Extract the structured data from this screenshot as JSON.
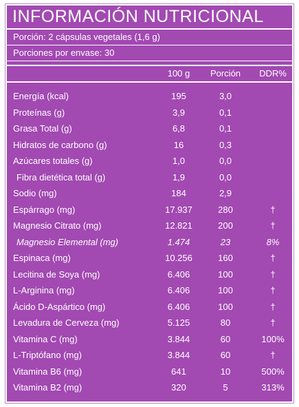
{
  "title": "INFORMACIÓN NUTRICIONAL",
  "serving_size": "Porción: 2 cápsulas vegetales (1,6 g)",
  "servings_per_container": "Porciones por envase: 30",
  "columns": [
    "100 g",
    "Porción",
    "DDR%"
  ],
  "rows": [
    {
      "name": "Energía (kcal)",
      "per100": "195",
      "serving": "3,0",
      "ddr": ""
    },
    {
      "name": "Proteínas (g)",
      "per100": "3,9",
      "serving": "0,1",
      "ddr": ""
    },
    {
      "name": "Grasa Total (g)",
      "per100": "6,8",
      "serving": "0,1",
      "ddr": ""
    },
    {
      "name": "Hidratos de carbono (g)",
      "per100": "16",
      "serving": "0,3",
      "ddr": ""
    },
    {
      "name": "Azúcares totales (g)",
      "per100": "1,0",
      "serving": "0,0",
      "ddr": ""
    },
    {
      "name": "Fibra dietética total (g)",
      "per100": "1,9",
      "serving": "0,0",
      "ddr": ""
    },
    {
      "name": "Sodio (mg)",
      "per100": "184",
      "serving": "2,9",
      "ddr": ""
    },
    {
      "name": "Espárrago (mg)",
      "per100": "17.937",
      "serving": "280",
      "ddr": "†"
    },
    {
      "name": "Magnesio Citrato (mg)",
      "per100": "12.821",
      "serving": "200",
      "ddr": "†"
    },
    {
      "name": "Magnesio Elemental (mg)",
      "per100": "1.474",
      "serving": "23",
      "ddr": "8%"
    },
    {
      "name": "Espinaca (mg)",
      "per100": "10.256",
      "serving": "160",
      "ddr": "†"
    },
    {
      "name": "Lecitina de Soya (mg)",
      "per100": "6.406",
      "serving": "100",
      "ddr": "†"
    },
    {
      "name": "L-Arginina (mg)",
      "per100": "6.406",
      "serving": "100",
      "ddr": "†"
    },
    {
      "name": "Ácido D-Aspártico (mg)",
      "per100": "6.406",
      "serving": "100",
      "ddr": "†"
    },
    {
      "name": "Levadura de Cerveza (mg)",
      "per100": "5.125",
      "serving": "80",
      "ddr": "†"
    },
    {
      "name": "Vitamina C  (mg)",
      "per100": "3.844",
      "serving": "60",
      "ddr": "100%"
    },
    {
      "name": "L-Triptófano (mg)",
      "per100": "3.844",
      "serving": "60",
      "ddr": "†"
    },
    {
      "name": "Vitamina B6 (mg)",
      "per100": "641",
      "serving": "10",
      "ddr": "500%"
    },
    {
      "name": "Vitamina B2 (mg)",
      "per100": "320",
      "serving": "5",
      "ddr": "313%"
    }
  ],
  "colors": {
    "panel": "#a249b2",
    "text": "#ffffff"
  }
}
